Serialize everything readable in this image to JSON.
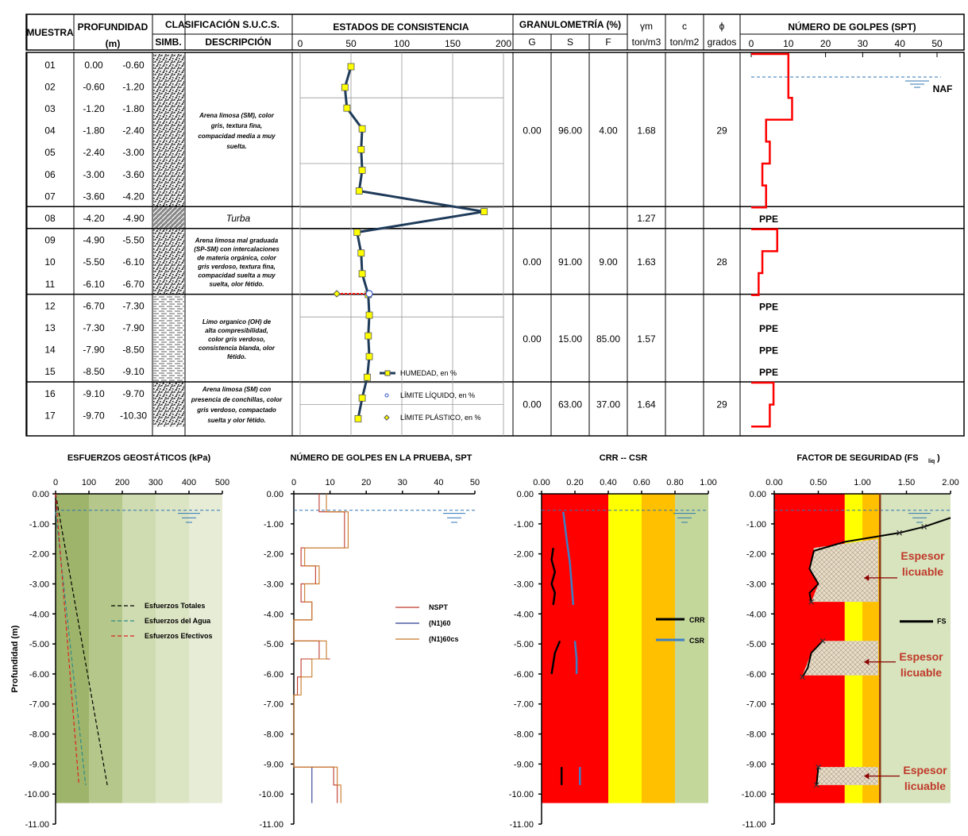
{
  "header": {
    "muestra": "MUESTRA",
    "profundidad": "PROFUNDIDAD",
    "prof_unit": "(m)",
    "clasificacion": "CLASIFICACIÓN S.U.C.S.",
    "simb": "SIMB.",
    "descripcion": "DESCRIPCIÓN",
    "estados": "ESTADOS DE CONSISTENCIA",
    "estados_ticks": [
      "0",
      "50",
      "100",
      "150",
      "200"
    ],
    "granulometria": "GRANULOMETRÍA (%)",
    "g": "G",
    "s": "S",
    "f": "F",
    "gamma": "γm",
    "gamma_unit": "ton/m3",
    "c": "c",
    "c_unit": "ton/m2",
    "phi": "ϕ",
    "phi_unit": "grados",
    "spt": "NÚMERO DE GOLPES (SPT)",
    "spt_ticks": [
      "0",
      "10",
      "20",
      "30",
      "40",
      "50"
    ]
  },
  "samples": [
    {
      "id": "01",
      "from": "0.00",
      "to": "-0.60"
    },
    {
      "id": "02",
      "from": "-0.60",
      "to": "-1.20"
    },
    {
      "id": "03",
      "from": "-1.20",
      "to": "-1.80"
    },
    {
      "id": "04",
      "from": "-1.80",
      "to": "-2.40"
    },
    {
      "id": "05",
      "from": "-2.40",
      "to": "-3.00"
    },
    {
      "id": "06",
      "from": "-3.00",
      "to": "-3.60"
    },
    {
      "id": "07",
      "from": "-3.60",
      "to": "-4.20"
    },
    {
      "id": "08",
      "from": "-4.20",
      "to": "-4.90"
    },
    {
      "id": "09",
      "from": "-4.90",
      "to": "-5.50"
    },
    {
      "id": "10",
      "from": "-5.50",
      "to": "-6.10"
    },
    {
      "id": "11",
      "from": "-6.10",
      "to": "-6.70"
    },
    {
      "id": "12",
      "from": "-6.70",
      "to": "-7.30"
    },
    {
      "id": "13",
      "from": "-7.30",
      "to": "-7.90"
    },
    {
      "id": "14",
      "from": "-7.90",
      "to": "-8.50"
    },
    {
      "id": "15",
      "from": "-8.50",
      "to": "-9.10"
    },
    {
      "id": "16",
      "from": "-9.10",
      "to": "-9.70"
    },
    {
      "id": "17",
      "from": "-9.70",
      "to": "-10.30"
    }
  ],
  "strata": [
    {
      "desc": [
        "Arena limosa (SM), color",
        "gris, textura fina,",
        "compacidad media a muy",
        "suelta."
      ],
      "pattern": "sand",
      "G": "0.00",
      "S": "96.00",
      "F": "4.00",
      "gamma": "1.68",
      "c": "",
      "phi": "29"
    },
    {
      "desc": [
        "Turba"
      ],
      "pattern": "peat",
      "G": "",
      "S": "",
      "F": "",
      "gamma": "1.27",
      "c": "",
      "phi": ""
    },
    {
      "desc": [
        "Arena limosa mal graduada",
        "(SP-SM) con intercalaciones",
        "de materia orgánica, color",
        "gris verdoso, textura fina,",
        "compacidad suelta a muy",
        "suelta, olor fétido."
      ],
      "pattern": "sand",
      "G": "0.00",
      "S": "91.00",
      "F": "9.00",
      "gamma": "1.63",
      "c": "",
      "phi": "28"
    },
    {
      "desc": [
        "Limo organico (OH) de",
        "alta compresibilidad,",
        "color gris verdoso,",
        "consistencia blanda, olor",
        "fétido."
      ],
      "pattern": "silt",
      "G": "0.00",
      "S": "15.00",
      "F": "85.00",
      "gamma": "1.57",
      "c": "",
      "phi": ""
    },
    {
      "desc": [
        "Arena limosa (SM) con",
        "presencia de conchillas, color",
        "gris verdoso, compactado",
        "suelta y olor fétido."
      ],
      "pattern": "sand",
      "G": "0.00",
      "S": "63.00",
      "F": "37.00",
      "gamma": "1.64",
      "c": "",
      "phi": "29"
    }
  ],
  "consistency": {
    "legend": [
      "HUMEDAD, en %",
      "LÍMITE LÍQUIDO, en %",
      "LÍMITE PLÁSTICO, en %"
    ],
    "humedad": [
      50,
      44,
      46,
      61,
      60,
      61,
      58,
      181,
      56,
      60,
      61,
      67,
      68,
      67,
      68,
      66,
      61,
      57
    ],
    "limite_liquido_13": 68,
    "limite_plastico_13": 36
  },
  "spt_column": {
    "naf_label": "NAF",
    "ppe_label": "PPE",
    "ppe_samples": [
      "08",
      "12",
      "13",
      "14",
      "15"
    ],
    "nspt": [
      10,
      10,
      11,
      4,
      5,
      3,
      4,
      null,
      7,
      3,
      2,
      null,
      null,
      null,
      null,
      6,
      5
    ]
  },
  "chart_data": [
    {
      "type": "line",
      "title": "ESFUERZOS GEOSTÁTICOS (kPa)",
      "ylabel": "Profundidad (m)",
      "xlim": [
        0,
        500
      ],
      "x_ticks": [
        "0",
        "100",
        "200",
        "300",
        "400",
        "500"
      ],
      "ylim": [
        -11,
        0
      ],
      "y_ticks": [
        "0.00",
        "-1.00",
        "-2.00",
        "-3.00",
        "-4.00",
        "-5.00",
        "-6.00",
        "-7.00",
        "-8.00",
        "-9.00",
        "-10.00",
        "-11.00"
      ],
      "series": [
        {
          "name": "Esfuerzos Totales",
          "x": [
            0,
            155
          ],
          "y": [
            0,
            -9.7
          ],
          "color": "#000000"
        },
        {
          "name": "Esfuerzos del Agua",
          "x": [
            0,
            90
          ],
          "y": [
            -0.6,
            -9.7
          ],
          "color": "#2e8b8b"
        },
        {
          "name": "Esfuerzos Efectivos",
          "x": [
            0,
            70
          ],
          "y": [
            0,
            -9.7
          ],
          "color": "#dd2222"
        }
      ]
    },
    {
      "type": "line",
      "title": "NÚMERO DE GOLPES EN LA PRUEBA, SPT",
      "xlim": [
        0,
        50
      ],
      "x_ticks": [
        "0",
        "10",
        "20",
        "30",
        "40",
        "50"
      ],
      "ylim": [
        -11,
        0
      ],
      "y_ticks": [
        "0.00",
        "-1.00",
        "-2.00",
        "-3.00",
        "-4.00",
        "-5.00",
        "-6.00",
        "-7.00",
        "-8.00",
        "-9.00",
        "-10.00",
        "-11.00"
      ],
      "series": [
        {
          "name": "NSPT",
          "color": "#c0392b",
          "x": [
            7,
            7,
            10,
            10,
            14,
            14,
            2,
            2,
            6,
            6,
            2,
            2,
            5,
            5,
            0,
            0,
            7,
            7,
            10,
            10,
            2,
            2,
            1,
            1,
            0,
            0,
            11,
            11,
            12,
            12
          ],
          "y": [
            0,
            -0.6,
            -0.6,
            -0.6,
            -0.6,
            -1.8,
            -1.8,
            -2.4,
            -2.4,
            -3.0,
            -3.0,
            -3.6,
            -3.6,
            -4.2,
            -4.2,
            -4.9,
            -4.9,
            -5.5,
            -5.5,
            -5.5,
            -5.5,
            -6.1,
            -6.1,
            -6.7,
            -6.7,
            -9.1,
            -9.1,
            -9.7,
            -9.7,
            -10.3
          ]
        },
        {
          "name": "(N1)60",
          "color": "#2a3a8f",
          "x": [
            5,
            5,
            5,
            5
          ],
          "y": [
            -9.1,
            -9.7,
            -9.7,
            -10.3
          ]
        },
        {
          "name": "(N1)60cs",
          "color": "#c8782a",
          "x": [
            9,
            9,
            15,
            15,
            3,
            3,
            7,
            7,
            3,
            3,
            5,
            5,
            0,
            0,
            9,
            9,
            5,
            5,
            2,
            2,
            0,
            0,
            12,
            12,
            13,
            13
          ],
          "y": [
            0,
            -0.6,
            -0.6,
            -1.8,
            -1.8,
            -2.4,
            -2.4,
            -3.0,
            -3.0,
            -3.6,
            -3.6,
            -4.2,
            -4.2,
            -4.9,
            -4.9,
            -5.5,
            -5.5,
            -6.1,
            -6.1,
            -6.7,
            -6.7,
            -9.1,
            -9.1,
            -9.7,
            -9.7,
            -10.3
          ]
        }
      ]
    },
    {
      "type": "line",
      "title": "CRR -- CSR",
      "xlim": [
        0,
        1
      ],
      "x_ticks": [
        "0.00",
        "0.20",
        "0.40",
        "0.60",
        "0.80",
        "1.00"
      ],
      "ylim": [
        -11,
        0
      ],
      "y_ticks": [
        "0.00",
        "-1.00",
        "-2.00",
        "-3.00",
        "-4.00",
        "-5.00",
        "-6.00",
        "-7.00",
        "-8.00",
        "-9.00",
        "-10.00",
        "-11.00"
      ],
      "series": [
        {
          "name": "CRR",
          "color": "#000000",
          "x": [
            0.07,
            0.06,
            0.08,
            0.06,
            0.08,
            0.07,
            0.07
          ],
          "y": [
            -1.8,
            -2.2,
            -2.6,
            -3.0,
            -3.3,
            -3.7,
            -3.7
          ]
        },
        {
          "name": "CSR",
          "color": "#3d7fc4",
          "x": [
            0.13,
            0.15,
            0.17,
            0.18,
            0.19
          ],
          "y": [
            -0.6,
            -1.5,
            -2.3,
            -3.0,
            -3.7
          ]
        }
      ],
      "extra_segments": [
        {
          "series": "CRR",
          "x": [
            0.11,
            0.08,
            0.06
          ],
          "y": [
            -4.9,
            -5.3,
            -6.0
          ]
        },
        {
          "series": "CSR",
          "x": [
            0.2,
            0.21,
            0.21
          ],
          "y": [
            -4.9,
            -5.5,
            -6.0
          ]
        },
        {
          "series": "CRR",
          "x": [
            0.12,
            0.12
          ],
          "y": [
            -9.1,
            -9.7
          ]
        },
        {
          "series": "CSR",
          "x": [
            0.23,
            0.23
          ],
          "y": [
            -9.1,
            -9.7
          ]
        }
      ],
      "zones": [
        "#ff0000",
        "#ffff00",
        "#ffc000",
        "#c4d79b"
      ]
    },
    {
      "type": "line",
      "title": "FACTOR DE SEGURIDAD (FSliq)",
      "xlim": [
        0,
        2
      ],
      "x_ticks": [
        "0.00",
        "0.50",
        "1.00",
        "1.50",
        "2.00"
      ],
      "ylim": [
        -11,
        0
      ],
      "y_ticks": [
        "0.00",
        "-1.00",
        "-2.00",
        "-3.00",
        "-4.00",
        "-5.00",
        "-6.00",
        "-7.00",
        "-8.00",
        "-9.00",
        "-10.00",
        "-11.00"
      ],
      "series": [
        {
          "name": "FS",
          "color": "#000000",
          "x": [
            2.0,
            1.7,
            1.42,
            0.8,
            0.45,
            0.4,
            0.5,
            0.4,
            0.42
          ],
          "y": [
            -0.8,
            -1.1,
            -1.3,
            -1.6,
            -1.9,
            -2.5,
            -3.0,
            -3.3,
            -3.6
          ]
        }
      ],
      "extra_segments": [
        {
          "series": "FS",
          "x": [
            0.55,
            0.42,
            0.38,
            0.32
          ],
          "y": [
            -4.9,
            -5.3,
            -5.8,
            -6.1
          ]
        },
        {
          "series": "FS",
          "x": [
            0.5,
            0.48
          ],
          "y": [
            -9.1,
            -9.7
          ]
        }
      ],
      "threshold": 1.2,
      "annotations": [
        "Espesor licuable",
        "Espesor licuable",
        "Espesor licuable"
      ],
      "zones": [
        "#ff0000",
        "#ffff00",
        "#ffc000",
        "#d7e4bd"
      ]
    }
  ]
}
